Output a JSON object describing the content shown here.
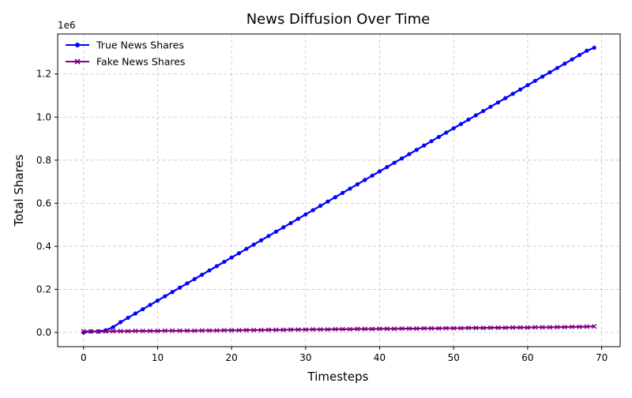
{
  "chart_data": {
    "type": "line",
    "title": "News Diffusion Over Time",
    "xlabel": "Timesteps",
    "ylabel": "Total Shares",
    "y_offset_text": "1e6",
    "xlim": [
      -3.5,
      72.5
    ],
    "ylim": [
      -0.066,
      1.386
    ],
    "xticks": [
      0,
      10,
      20,
      30,
      40,
      50,
      60,
      70
    ],
    "yticks": [
      0.0,
      0.2,
      0.4,
      0.6,
      0.8,
      1.0,
      1.2
    ],
    "ytick_labels": [
      "0.0",
      "0.2",
      "0.4",
      "0.6",
      "0.8",
      "1.0",
      "1.2"
    ],
    "grid": true,
    "legend_position": "upper-left",
    "series": [
      {
        "name": "True News Shares",
        "color": "#0000ff",
        "marker": "circle",
        "x": [
          0,
          1,
          2,
          3,
          4,
          5,
          6,
          7,
          8,
          9,
          10,
          11,
          12,
          13,
          14,
          15,
          16,
          17,
          18,
          19,
          20,
          21,
          22,
          23,
          24,
          25,
          26,
          27,
          28,
          29,
          30,
          31,
          32,
          33,
          34,
          35,
          36,
          37,
          38,
          39,
          40,
          41,
          42,
          43,
          44,
          45,
          46,
          47,
          48,
          49,
          50,
          51,
          52,
          53,
          54,
          55,
          56,
          57,
          58,
          59,
          60,
          61,
          62,
          63,
          64,
          65,
          66,
          67,
          68,
          69
        ],
        "values": [
          0.0,
          0.005,
          0.005,
          0.01,
          0.025,
          0.048,
          0.068,
          0.088,
          0.108,
          0.128,
          0.148,
          0.168,
          0.188,
          0.208,
          0.228,
          0.248,
          0.268,
          0.288,
          0.308,
          0.328,
          0.348,
          0.368,
          0.388,
          0.408,
          0.428,
          0.448,
          0.468,
          0.488,
          0.508,
          0.528,
          0.548,
          0.568,
          0.588,
          0.608,
          0.628,
          0.648,
          0.668,
          0.688,
          0.708,
          0.728,
          0.748,
          0.768,
          0.788,
          0.808,
          0.828,
          0.848,
          0.868,
          0.888,
          0.908,
          0.928,
          0.948,
          0.968,
          0.988,
          1.008,
          1.028,
          1.048,
          1.068,
          1.088,
          1.108,
          1.128,
          1.148,
          1.168,
          1.188,
          1.208,
          1.228,
          1.248,
          1.268,
          1.288,
          1.308,
          1.322
        ]
      },
      {
        "name": "Fake News Shares",
        "color": "#800080",
        "marker": "x",
        "x": [
          0,
          1,
          2,
          3,
          4,
          5,
          6,
          7,
          8,
          9,
          10,
          11,
          12,
          13,
          14,
          15,
          16,
          17,
          18,
          19,
          20,
          21,
          22,
          23,
          24,
          25,
          26,
          27,
          28,
          29,
          30,
          31,
          32,
          33,
          34,
          35,
          36,
          37,
          38,
          39,
          40,
          41,
          42,
          43,
          44,
          45,
          46,
          47,
          48,
          49,
          50,
          51,
          52,
          53,
          54,
          55,
          56,
          57,
          58,
          59,
          60,
          61,
          62,
          63,
          64,
          65,
          66,
          67,
          68,
          69
        ],
        "values": [
          0.005,
          0.005,
          0.004,
          0.005,
          0.006,
          0.006,
          0.006,
          0.007,
          0.007,
          0.007,
          0.007,
          0.008,
          0.008,
          0.008,
          0.008,
          0.008,
          0.009,
          0.009,
          0.009,
          0.01,
          0.01,
          0.01,
          0.011,
          0.011,
          0.011,
          0.012,
          0.012,
          0.012,
          0.013,
          0.013,
          0.013,
          0.014,
          0.014,
          0.014,
          0.015,
          0.015,
          0.015,
          0.016,
          0.016,
          0.016,
          0.017,
          0.017,
          0.017,
          0.018,
          0.018,
          0.018,
          0.019,
          0.019,
          0.019,
          0.02,
          0.02,
          0.02,
          0.021,
          0.021,
          0.021,
          0.022,
          0.022,
          0.022,
          0.023,
          0.023,
          0.023,
          0.024,
          0.024,
          0.024,
          0.025,
          0.025,
          0.026,
          0.026,
          0.027,
          0.028
        ]
      }
    ]
  }
}
